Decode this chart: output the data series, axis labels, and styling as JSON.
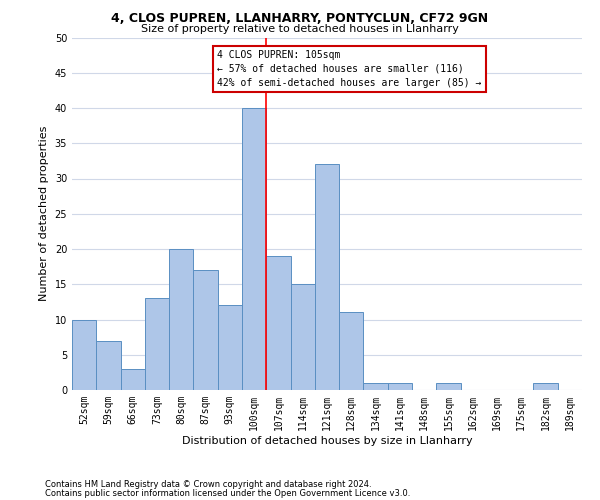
{
  "title1": "4, CLOS PUPREN, LLANHARRY, PONTYCLUN, CF72 9GN",
  "title2": "Size of property relative to detached houses in Llanharry",
  "xlabel": "Distribution of detached houses by size in Llanharry",
  "ylabel": "Number of detached properties",
  "categories": [
    "52sqm",
    "59sqm",
    "66sqm",
    "73sqm",
    "80sqm",
    "87sqm",
    "93sqm",
    "100sqm",
    "107sqm",
    "114sqm",
    "121sqm",
    "128sqm",
    "134sqm",
    "141sqm",
    "148sqm",
    "155sqm",
    "162sqm",
    "169sqm",
    "175sqm",
    "182sqm",
    "189sqm"
  ],
  "values": [
    10,
    7,
    3,
    13,
    20,
    17,
    12,
    40,
    19,
    15,
    32,
    11,
    1,
    1,
    0,
    1,
    0,
    0,
    0,
    1,
    0
  ],
  "bar_color": "#aec6e8",
  "bar_edge_color": "#5a8fc2",
  "vline_index": 7,
  "annotation_text": "4 CLOS PUPREN: 105sqm\n← 57% of detached houses are smaller (116)\n42% of semi-detached houses are larger (85) →",
  "footnote1": "Contains HM Land Registry data © Crown copyright and database right 2024.",
  "footnote2": "Contains public sector information licensed under the Open Government Licence v3.0.",
  "ylim": [
    0,
    50
  ],
  "yticks": [
    0,
    5,
    10,
    15,
    20,
    25,
    30,
    35,
    40,
    45,
    50
  ],
  "bg_color": "#ffffff",
  "grid_color": "#d0d8e8",
  "annotation_box_color": "#cc0000",
  "title1_fontsize": 9,
  "title2_fontsize": 8,
  "ylabel_fontsize": 8,
  "xlabel_fontsize": 8,
  "tick_fontsize": 7,
  "annotation_fontsize": 7,
  "footnote_fontsize": 6
}
